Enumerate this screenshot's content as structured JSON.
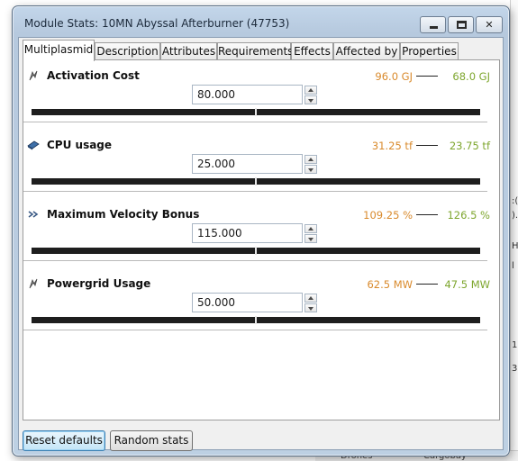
{
  "window": {
    "title": "Module Stats: 10MN Abyssal Afterburner (47753)"
  },
  "tabs": [
    {
      "label": "Multiplasmid",
      "active": true
    },
    {
      "label": "Description",
      "active": false
    },
    {
      "label": "Attributes",
      "active": false
    },
    {
      "label": "Requirements",
      "active": false
    },
    {
      "label": "Effects",
      "active": false
    },
    {
      "label": "Affected by",
      "active": false
    },
    {
      "label": "Properties",
      "active": false
    }
  ],
  "stats": [
    {
      "name": "Activation Cost",
      "icon": "capacitor-icon",
      "original": "96.0 GJ",
      "modified": "68.0 GJ",
      "value": "80.000",
      "slider_fraction": 0.5
    },
    {
      "name": "CPU usage",
      "icon": "cpu-icon",
      "original": "31.25 tf",
      "modified": "23.75 tf",
      "value": "25.000",
      "slider_fraction": 0.5
    },
    {
      "name": "Maximum Velocity Bonus",
      "icon": "velocity-icon",
      "original": "109.25 %",
      "modified": "126.5 %",
      "value": "115.000",
      "slider_fraction": 0.5
    },
    {
      "name": "Powergrid Usage",
      "icon": "powergrid-icon",
      "original": "62.5 MW",
      "modified": "47.5 MW",
      "value": "50.000",
      "slider_fraction": 0.5
    }
  ],
  "buttons": {
    "reset": "Reset defaults",
    "random": "Random stats"
  },
  "background": {
    "bottom_items": [
      "Drones",
      "Cargobay"
    ]
  },
  "colors": {
    "original_value": "#d98a2c",
    "modified_value": "#7ea62e",
    "slider_track": "#1e1e1e"
  }
}
